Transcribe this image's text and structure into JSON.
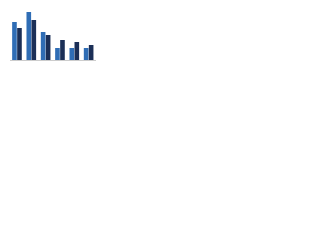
{
  "chart_data": {
    "type": "bar",
    "categories": [
      null,
      null,
      null,
      null,
      null,
      null
    ],
    "series": [
      {
        "color": "#2f6db5",
        "values": [
          76,
          96,
          56,
          24,
          24,
          24
        ]
      },
      {
        "color": "#1b2f57",
        "values": [
          64,
          80,
          50,
          40,
          36,
          30
        ]
      }
    ],
    "ylim": [
      0,
      100
    ]
  }
}
